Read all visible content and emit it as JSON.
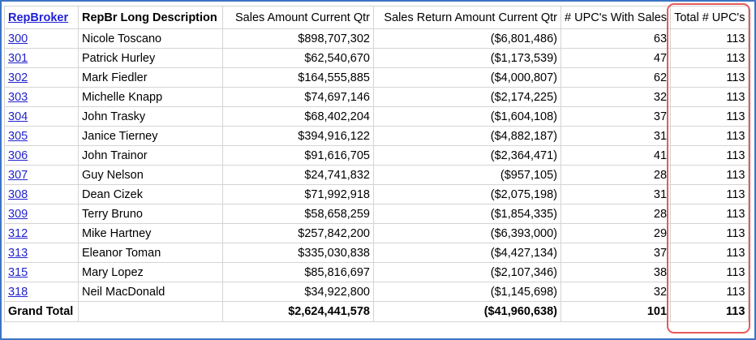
{
  "table": {
    "headers": {
      "rep_broker": "RepBroker",
      "long_desc": "RepBr Long Description",
      "sales_amount": "Sales Amount Current Qtr",
      "sales_return": "Sales Return Amount Current Qtr",
      "upcs_with_sales": "# UPC's With Sales",
      "total_upcs": "Total # UPC's"
    },
    "rows": [
      {
        "rep": "300",
        "name": "Nicole Toscano",
        "sales": "$898,707,302",
        "returns": "($6,801,486)",
        "upcs_sales": "63",
        "total_upcs": "113"
      },
      {
        "rep": "301",
        "name": "Patrick Hurley",
        "sales": "$62,540,670",
        "returns": "($1,173,539)",
        "upcs_sales": "47",
        "total_upcs": "113"
      },
      {
        "rep": "302",
        "name": "Mark Fiedler",
        "sales": "$164,555,885",
        "returns": "($4,000,807)",
        "upcs_sales": "62",
        "total_upcs": "113"
      },
      {
        "rep": "303",
        "name": "Michelle Knapp",
        "sales": "$74,697,146",
        "returns": "($2,174,225)",
        "upcs_sales": "32",
        "total_upcs": "113"
      },
      {
        "rep": "304",
        "name": "John Trasky",
        "sales": "$68,402,204",
        "returns": "($1,604,108)",
        "upcs_sales": "37",
        "total_upcs": "113"
      },
      {
        "rep": "305",
        "name": "Janice Tierney",
        "sales": "$394,916,122",
        "returns": "($4,882,187)",
        "upcs_sales": "31",
        "total_upcs": "113"
      },
      {
        "rep": "306",
        "name": "John Trainor",
        "sales": "$91,616,705",
        "returns": "($2,364,471)",
        "upcs_sales": "41",
        "total_upcs": "113"
      },
      {
        "rep": "307",
        "name": "Guy Nelson",
        "sales": "$24,741,832",
        "returns": "($957,105)",
        "upcs_sales": "28",
        "total_upcs": "113"
      },
      {
        "rep": "308",
        "name": "Dean Cizek",
        "sales": "$71,992,918",
        "returns": "($2,075,198)",
        "upcs_sales": "31",
        "total_upcs": "113"
      },
      {
        "rep": "309",
        "name": "Terry Bruno",
        "sales": "$58,658,259",
        "returns": "($1,854,335)",
        "upcs_sales": "28",
        "total_upcs": "113"
      },
      {
        "rep": "312",
        "name": "Mike Hartney",
        "sales": "$257,842,200",
        "returns": "($6,393,000)",
        "upcs_sales": "29",
        "total_upcs": "113"
      },
      {
        "rep": "313",
        "name": "Eleanor Toman",
        "sales": "$335,030,838",
        "returns": "($4,427,134)",
        "upcs_sales": "37",
        "total_upcs": "113"
      },
      {
        "rep": "315",
        "name": "Mary Lopez",
        "sales": "$85,816,697",
        "returns": "($2,107,346)",
        "upcs_sales": "38",
        "total_upcs": "113"
      },
      {
        "rep": "318",
        "name": "Neil MacDonald",
        "sales": "$34,922,800",
        "returns": "($1,145,698)",
        "upcs_sales": "32",
        "total_upcs": "113"
      }
    ],
    "grand_total": {
      "label": "Grand Total",
      "sales": "$2,624,441,578",
      "returns": "($41,960,638)",
      "upcs_sales": "101",
      "total_upcs": "113"
    }
  },
  "colors": {
    "frame_border": "#3d74c4",
    "highlight_border": "#e65a5a",
    "link": "#2222cc"
  }
}
